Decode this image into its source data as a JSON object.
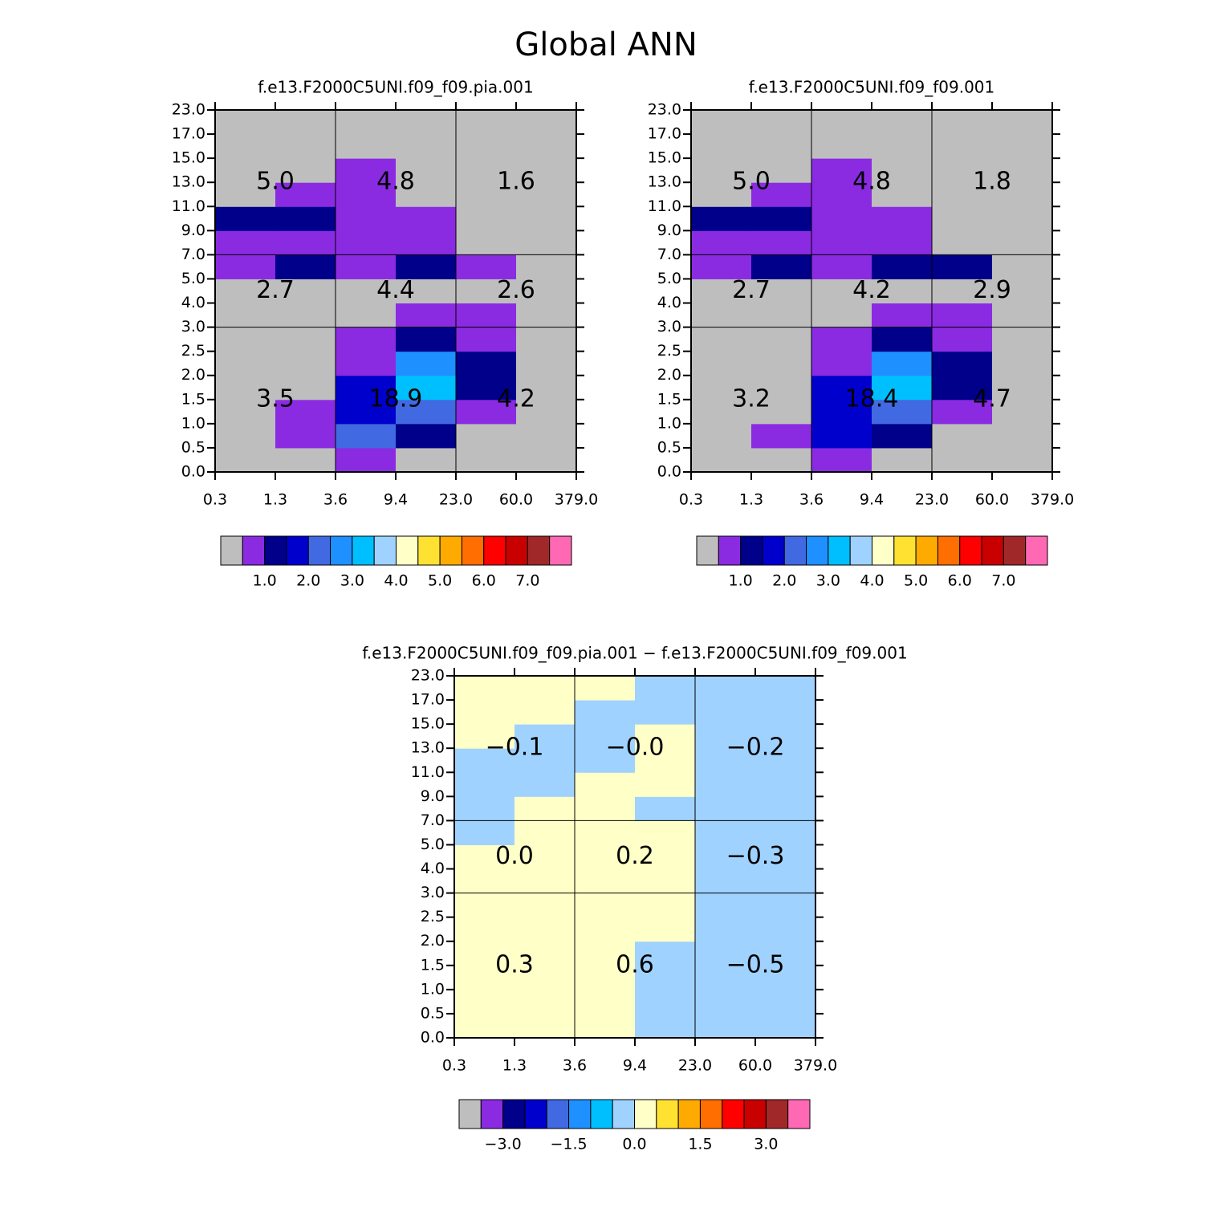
{
  "figure_title": "Global ANN",
  "chart_data": [
    {
      "type": "heatmap",
      "title": "f.e13.F2000C5UNI.f09_f09.pia.001",
      "x_edges": [
        "0.3",
        "1.3",
        "3.6",
        "9.4",
        "23.0",
        "60.0",
        "379.0"
      ],
      "y_edges": [
        "0.0",
        "0.5",
        "1.0",
        "1.5",
        "2.0",
        "2.5",
        "3.0",
        "4.0",
        "5.0",
        "7.0",
        "9.0",
        "11.0",
        "13.0",
        "15.0",
        "17.0",
        "23.0"
      ],
      "z": [
        [
          0.2,
          0.2,
          0.75,
          0.2,
          0.2,
          0.2
        ],
        [
          0.2,
          0.75,
          2.25,
          1.25,
          0.2,
          0.2
        ],
        [
          0.2,
          0.75,
          1.75,
          2.25,
          0.75,
          0.2
        ],
        [
          0.2,
          0.2,
          1.75,
          3.25,
          1.25,
          0.2
        ],
        [
          0.2,
          0.2,
          0.75,
          2.75,
          1.25,
          0.2
        ],
        [
          0.2,
          0.2,
          0.75,
          1.25,
          0.75,
          0.2
        ],
        [
          0.2,
          0.2,
          0.2,
          0.75,
          0.75,
          0.2
        ],
        [
          0.2,
          0.2,
          0.2,
          0.2,
          0.2,
          0.2
        ],
        [
          0.75,
          1.25,
          0.75,
          1.25,
          0.75,
          0.2
        ],
        [
          0.75,
          0.75,
          0.75,
          0.75,
          0.2,
          0.2
        ],
        [
          1.25,
          1.25,
          0.75,
          0.75,
          0.2,
          0.2
        ],
        [
          0.2,
          0.75,
          0.75,
          0.2,
          0.2,
          0.2
        ],
        [
          0.2,
          0.2,
          0.75,
          0.2,
          0.2,
          0.2
        ],
        [
          0.2,
          0.2,
          0.2,
          0.2,
          0.2,
          0.2
        ],
        [
          0.2,
          0.2,
          0.2,
          0.2,
          0.2,
          0.2
        ]
      ],
      "annotations": {
        "values": [
          5.0,
          4.8,
          1.6,
          2.7,
          4.4,
          2.6,
          3.5,
          18.9,
          4.2
        ],
        "value_labels": [
          "5.0",
          "4.8",
          "1.6",
          "2.7",
          "4.4",
          "2.6",
          "3.5",
          "18.9",
          "4.2"
        ]
      },
      "colorbar": {
        "colors": [
          "#bebebe",
          "#8a2be2",
          "#00008b",
          "#0000cd",
          "#4169e1",
          "#1e90ff",
          "#00bfff",
          "#a0d2ff",
          "#ffffc8",
          "#ffe132",
          "#ffaa00",
          "#ff6e00",
          "#ff0000",
          "#c80000",
          "#a02828",
          "#ff69b4"
        ],
        "levels": [
          0.5,
          {
            "value": 1,
            "label": "1.0"
          },
          1.5,
          {
            "value": 2,
            "label": "2.0"
          },
          2.5,
          {
            "value": 3,
            "label": "3.0"
          },
          3.5,
          {
            "value": 4,
            "label": "4.0"
          },
          4.5,
          {
            "value": 5,
            "label": "5.0"
          },
          5.5,
          {
            "value": 6,
            "label": "6.0"
          },
          6.5,
          {
            "value": 7,
            "label": "7.0"
          },
          7.5
        ]
      }
    },
    {
      "type": "heatmap",
      "title": "f.e13.F2000C5UNI.f09_f09.001",
      "x_edges": [
        "0.3",
        "1.3",
        "3.6",
        "9.4",
        "23.0",
        "60.0",
        "379.0"
      ],
      "y_edges": [
        "0.0",
        "0.5",
        "1.0",
        "1.5",
        "2.0",
        "2.5",
        "3.0",
        "4.0",
        "5.0",
        "7.0",
        "9.0",
        "11.0",
        "13.0",
        "15.0",
        "17.0",
        "23.0"
      ],
      "z": [
        [
          0.2,
          0.2,
          0.75,
          0.2,
          0.2,
          0.2
        ],
        [
          0.2,
          0.75,
          1.75,
          1.25,
          0.2,
          0.2
        ],
        [
          0.2,
          0.2,
          1.75,
          2.25,
          0.75,
          0.2
        ],
        [
          0.2,
          0.2,
          1.75,
          3.25,
          1.25,
          0.2
        ],
        [
          0.2,
          0.2,
          0.75,
          2.75,
          1.25,
          0.2
        ],
        [
          0.2,
          0.2,
          0.75,
          1.25,
          0.75,
          0.2
        ],
        [
          0.2,
          0.2,
          0.2,
          0.75,
          0.75,
          0.2
        ],
        [
          0.2,
          0.2,
          0.2,
          0.2,
          0.2,
          0.2
        ],
        [
          0.75,
          1.25,
          0.75,
          1.25,
          1.25,
          0.2
        ],
        [
          0.75,
          0.75,
          0.75,
          0.75,
          0.2,
          0.2
        ],
        [
          1.25,
          1.25,
          0.75,
          0.75,
          0.2,
          0.2
        ],
        [
          0.2,
          0.75,
          0.75,
          0.2,
          0.2,
          0.2
        ],
        [
          0.2,
          0.2,
          0.75,
          0.2,
          0.2,
          0.2
        ],
        [
          0.2,
          0.2,
          0.2,
          0.2,
          0.2,
          0.2
        ],
        [
          0.2,
          0.2,
          0.2,
          0.2,
          0.2,
          0.2
        ]
      ],
      "annotations": {
        "values": [
          5.0,
          4.8,
          1.8,
          2.7,
          4.2,
          2.9,
          3.2,
          18.4,
          4.7
        ],
        "value_labels": [
          "5.0",
          "4.8",
          "1.8",
          "2.7",
          "4.2",
          "2.9",
          "3.2",
          "18.4",
          "4.7"
        ]
      },
      "colorbar": {
        "colors": [
          "#bebebe",
          "#8a2be2",
          "#00008b",
          "#0000cd",
          "#4169e1",
          "#1e90ff",
          "#00bfff",
          "#a0d2ff",
          "#ffffc8",
          "#ffe132",
          "#ffaa00",
          "#ff6e00",
          "#ff0000",
          "#c80000",
          "#a02828",
          "#ff69b4"
        ],
        "levels": [
          0.5,
          {
            "value": 1,
            "label": "1.0"
          },
          1.5,
          {
            "value": 2,
            "label": "2.0"
          },
          2.5,
          {
            "value": 3,
            "label": "3.0"
          },
          3.5,
          {
            "value": 4,
            "label": "4.0"
          },
          4.5,
          {
            "value": 5,
            "label": "5.0"
          },
          5.5,
          {
            "value": 6,
            "label": "6.0"
          },
          6.5,
          {
            "value": 7,
            "label": "7.0"
          },
          7.5
        ]
      }
    },
    {
      "type": "heatmap",
      "title": "f.e13.F2000C5UNI.f09_f09.pia.001 − f.e13.F2000C5UNI.f09_f09.001",
      "x_edges": [
        "0.3",
        "1.3",
        "3.6",
        "9.4",
        "23.0",
        "60.0",
        "379.0"
      ],
      "y_edges": [
        "0.0",
        "0.5",
        "1.0",
        "1.5",
        "2.0",
        "2.5",
        "3.0",
        "4.0",
        "5.0",
        "7.0",
        "9.0",
        "11.0",
        "13.0",
        "15.0",
        "17.0",
        "23.0"
      ],
      "z": [
        [
          0.2,
          0.2,
          0.2,
          -0.2,
          -0.2,
          -0.2
        ],
        [
          0.2,
          0.2,
          0.2,
          -0.2,
          -0.2,
          -0.2
        ],
        [
          0.2,
          0.2,
          0.2,
          -0.2,
          -0.2,
          -0.2
        ],
        [
          0.2,
          0.2,
          0.2,
          -0.2,
          -0.2,
          -0.2
        ],
        [
          0.2,
          0.2,
          0.2,
          0.2,
          -0.2,
          -0.2
        ],
        [
          0.2,
          0.2,
          0.2,
          0.2,
          -0.2,
          -0.2
        ],
        [
          0.2,
          0.2,
          0.2,
          0.2,
          -0.2,
          -0.2
        ],
        [
          0.2,
          0.2,
          0.2,
          0.2,
          -0.2,
          -0.2
        ],
        [
          -0.2,
          0.2,
          0.2,
          0.2,
          -0.2,
          -0.2
        ],
        [
          -0.2,
          0.2,
          0.2,
          -0.2,
          -0.2,
          -0.2
        ],
        [
          -0.2,
          -0.2,
          0.2,
          0.2,
          -0.2,
          -0.2
        ],
        [
          -0.2,
          -0.2,
          -0.2,
          0.2,
          -0.2,
          -0.2
        ],
        [
          0.2,
          -0.2,
          -0.2,
          0.2,
          -0.2,
          -0.2
        ],
        [
          0.2,
          0.2,
          -0.2,
          -0.2,
          -0.2,
          -0.2
        ],
        [
          0.2,
          0.2,
          0.2,
          -0.2,
          -0.2,
          -0.2
        ]
      ],
      "annotations": {
        "values": [
          -0.1,
          0,
          -0.2,
          0.0,
          0.2,
          -0.3,
          0.3,
          0.6,
          -0.5
        ],
        "value_labels": [
          "−0.1",
          "−0.0",
          "−0.2",
          "0.0",
          "0.2",
          "−0.3",
          "0.3",
          "0.6",
          "−0.5"
        ]
      },
      "colorbar": {
        "colors": [
          "#bebebe",
          "#8a2be2",
          "#00008b",
          "#0000cd",
          "#4169e1",
          "#1e90ff",
          "#00bfff",
          "#a0d2ff",
          "#ffffc8",
          "#ffe132",
          "#ffaa00",
          "#ff6e00",
          "#ff0000",
          "#c80000",
          "#a02828",
          "#ff69b4"
        ],
        "levels": [
          -3.5,
          {
            "value": -3,
            "label": "−3.0"
          },
          -2.5,
          -2,
          {
            "value": -1.5,
            "label": "−1.5"
          },
          -1,
          -0.5,
          {
            "value": 0,
            "label": "0.0"
          },
          0.5,
          1,
          {
            "value": 1.5,
            "label": "1.5"
          },
          2,
          2.5,
          {
            "value": 3,
            "label": "3.0"
          },
          3.5
        ]
      }
    }
  ]
}
